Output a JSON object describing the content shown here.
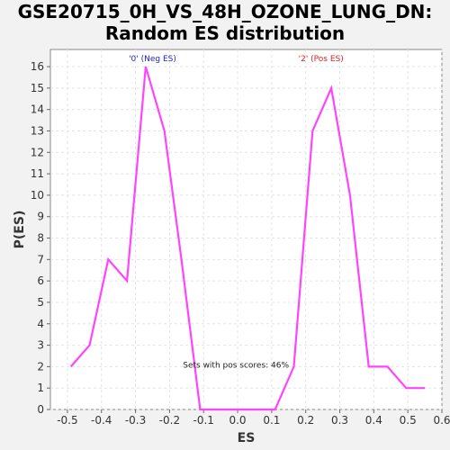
{
  "chart_data": {
    "type": "line",
    "title_line1": "GSE20715_0H_VS_48H_OZONE_LUNG_DN:",
    "title_line2": "Random ES distribution",
    "xlabel": "ES",
    "ylabel": "P(ES)",
    "xlim": [
      -0.55,
      0.6
    ],
    "ylim": [
      0,
      16.8
    ],
    "x_ticks": [
      "-0.5",
      "-0.4",
      "-0.3",
      "-0.2",
      "-0.1",
      "0.0",
      "0.1",
      "0.2",
      "0.3",
      "0.4",
      "0.5",
      "0.6"
    ],
    "y_ticks": [
      "0",
      "1",
      "2",
      "3",
      "4",
      "5",
      "6",
      "7",
      "8",
      "9",
      "10",
      "11",
      "12",
      "13",
      "14",
      "15",
      "16"
    ],
    "grid": true,
    "series": [
      {
        "color": "#ff44ff",
        "x": [
          -0.49,
          -0.435,
          -0.38,
          -0.325,
          -0.27,
          -0.215,
          -0.165,
          -0.11,
          -0.055,
          0.0,
          0.055,
          0.11,
          0.165,
          0.22,
          0.275,
          0.33,
          0.385,
          0.44,
          0.495,
          0.55
        ],
        "y": [
          2,
          3,
          7,
          6,
          16,
          13,
          7,
          0,
          0,
          0,
          0,
          0,
          2,
          13,
          15,
          10,
          2,
          2,
          1,
          1
        ]
      }
    ],
    "annotations": {
      "neg_label": "'0' (Neg ES)",
      "neg_color": "#2222cc",
      "pos_label": "'2' (Pos ES)",
      "pos_color": "#dd2222",
      "pos_scores": "Sets with pos scores: 46%"
    }
  }
}
